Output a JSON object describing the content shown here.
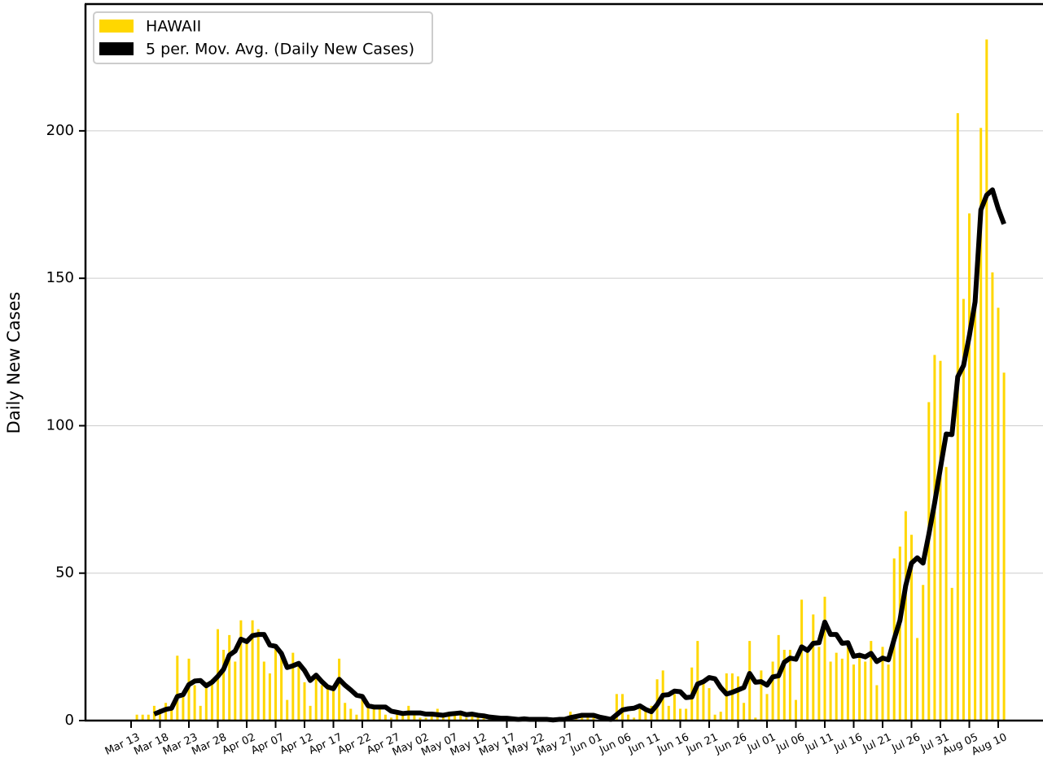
{
  "chart_data": {
    "type": "bar",
    "ylabel": "Daily New Cases",
    "categories": [
      "Mar 13",
      null,
      null,
      null,
      null,
      "Mar 18",
      null,
      null,
      null,
      null,
      "Mar 23",
      null,
      null,
      null,
      null,
      "Mar 28",
      null,
      null,
      null,
      null,
      "Apr 02",
      null,
      null,
      null,
      null,
      "Apr 07",
      null,
      null,
      null,
      null,
      "Apr 12",
      null,
      null,
      null,
      null,
      "Apr 17",
      null,
      null,
      null,
      null,
      "Apr 22",
      null,
      null,
      null,
      null,
      "Apr 27",
      null,
      null,
      null,
      null,
      "May 02",
      null,
      null,
      null,
      null,
      "May 07",
      null,
      null,
      null,
      null,
      "May 12",
      null,
      null,
      null,
      null,
      "May 17",
      null,
      null,
      null,
      null,
      "May 22",
      null,
      null,
      null,
      null,
      "May 27",
      null,
      null,
      null,
      null,
      "Jun 01",
      null,
      null,
      null,
      null,
      "Jun 06",
      null,
      null,
      null,
      null,
      "Jun 11",
      null,
      null,
      null,
      null,
      "Jun 16",
      null,
      null,
      null,
      null,
      "Jun 21",
      null,
      null,
      null,
      null,
      "Jun 26",
      null,
      null,
      null,
      null,
      "Jul 01",
      null,
      null,
      null,
      null,
      "Jul 06",
      null,
      null,
      null,
      null,
      "Jul 11",
      null,
      null,
      null,
      null,
      "Jul 16",
      null,
      null,
      null,
      null,
      "Jul 21",
      null,
      null,
      null,
      null,
      "Jul 26",
      null,
      null,
      null,
      null,
      "Jul 31",
      null,
      null,
      null,
      null,
      "Aug 05",
      null,
      null,
      null,
      null,
      "Aug 10",
      null
    ],
    "series": [
      {
        "name": "HAWAII",
        "type": "bar",
        "color": "#ffd700",
        "values": [
          0,
          2,
          2,
          2,
          5,
          4,
          6,
          4,
          22,
          8,
          21,
          12,
          5,
          13,
          14,
          31,
          24,
          29,
          20,
          34,
          27,
          34,
          31,
          20,
          16,
          25,
          22,
          7,
          23,
          20,
          13,
          5,
          16,
          12,
          11,
          10,
          21,
          6,
          4,
          2,
          8,
          5,
          4,
          4,
          2,
          1,
          3,
          2,
          5,
          2,
          1,
          1,
          2,
          4,
          1,
          3,
          2,
          3,
          1,
          2,
          1,
          1,
          1,
          0,
          1,
          1,
          0,
          0,
          1,
          0,
          1,
          0,
          0,
          0,
          1,
          1,
          3,
          2,
          2,
          1,
          1,
          0,
          0,
          0,
          9,
          9,
          2,
          1,
          4,
          3,
          5,
          14,
          17,
          5,
          9,
          4,
          4,
          18,
          27,
          13,
          11,
          2,
          3,
          16,
          16,
          15,
          6,
          27,
          1,
          17,
          9,
          20,
          29,
          24,
          24,
          7,
          41,
          23,
          36,
          25,
          42,
          20,
          23,
          21,
          26,
          19,
          22,
          20,
          27,
          12,
          25,
          19,
          55,
          59,
          71,
          63,
          28,
          46,
          108,
          124,
          122,
          86,
          45,
          206,
          143,
          172,
          144,
          201,
          231,
          152,
          140,
          118
        ]
      },
      {
        "name": "5 per. Mov. Avg. (Daily New Cases)",
        "type": "line",
        "color": "#000000",
        "values": [
          null,
          null,
          null,
          null,
          2.2,
          3,
          3.8,
          4.2,
          8.2,
          8.8,
          12.2,
          13.4,
          13.6,
          11.8,
          13,
          15,
          17.4,
          22.2,
          23.6,
          27.6,
          26.8,
          28.8,
          29.2,
          29.2,
          25.6,
          25.2,
          22.8,
          18,
          18.6,
          19.4,
          17,
          13.6,
          15.4,
          13.2,
          11.4,
          10.8,
          14,
          12,
          10.4,
          8.6,
          8.2,
          5,
          4.6,
          4.6,
          4.6,
          3.2,
          2.8,
          2.4,
          2.6,
          2.6,
          2.6,
          2.2,
          2.2,
          2,
          1.8,
          2.2,
          2.4,
          2.6,
          2,
          2.2,
          1.8,
          1.6,
          1.2,
          1,
          0.8,
          0.8,
          0.6,
          0.4,
          0.6,
          0.4,
          0.4,
          0.4,
          0.4,
          0.2,
          0.4,
          0.4,
          1,
          1.4,
          1.8,
          1.8,
          1.8,
          1.2,
          0.8,
          0.4,
          2,
          3.6,
          4,
          4.2,
          5,
          3.8,
          3,
          5.4,
          8.6,
          8.8,
          10,
          9.8,
          7.8,
          8,
          12.4,
          13.2,
          14.6,
          14.2,
          11.2,
          9,
          9.6,
          10.4,
          11.2,
          16,
          13,
          13.2,
          12,
          14.8,
          15.2,
          19.8,
          21.2,
          20.8,
          25,
          23.8,
          26.2,
          26.4,
          33.4,
          29.2,
          29.2,
          26.2,
          26.4,
          21.8,
          22.2,
          21.6,
          22.8,
          20,
          21.2,
          20.6,
          27.6,
          34,
          45.8,
          53.4,
          55.2,
          53.4,
          63.2,
          73.8,
          85.6,
          97.2,
          97,
          116.6,
          120.4,
          130.4,
          142,
          173.2,
          178.2,
          180,
          173.6,
          168.4
        ]
      }
    ],
    "ylim": [
      0,
      243
    ],
    "yticks": [
      0,
      50,
      100,
      150,
      200
    ],
    "grid": true,
    "legend": "upper left"
  }
}
